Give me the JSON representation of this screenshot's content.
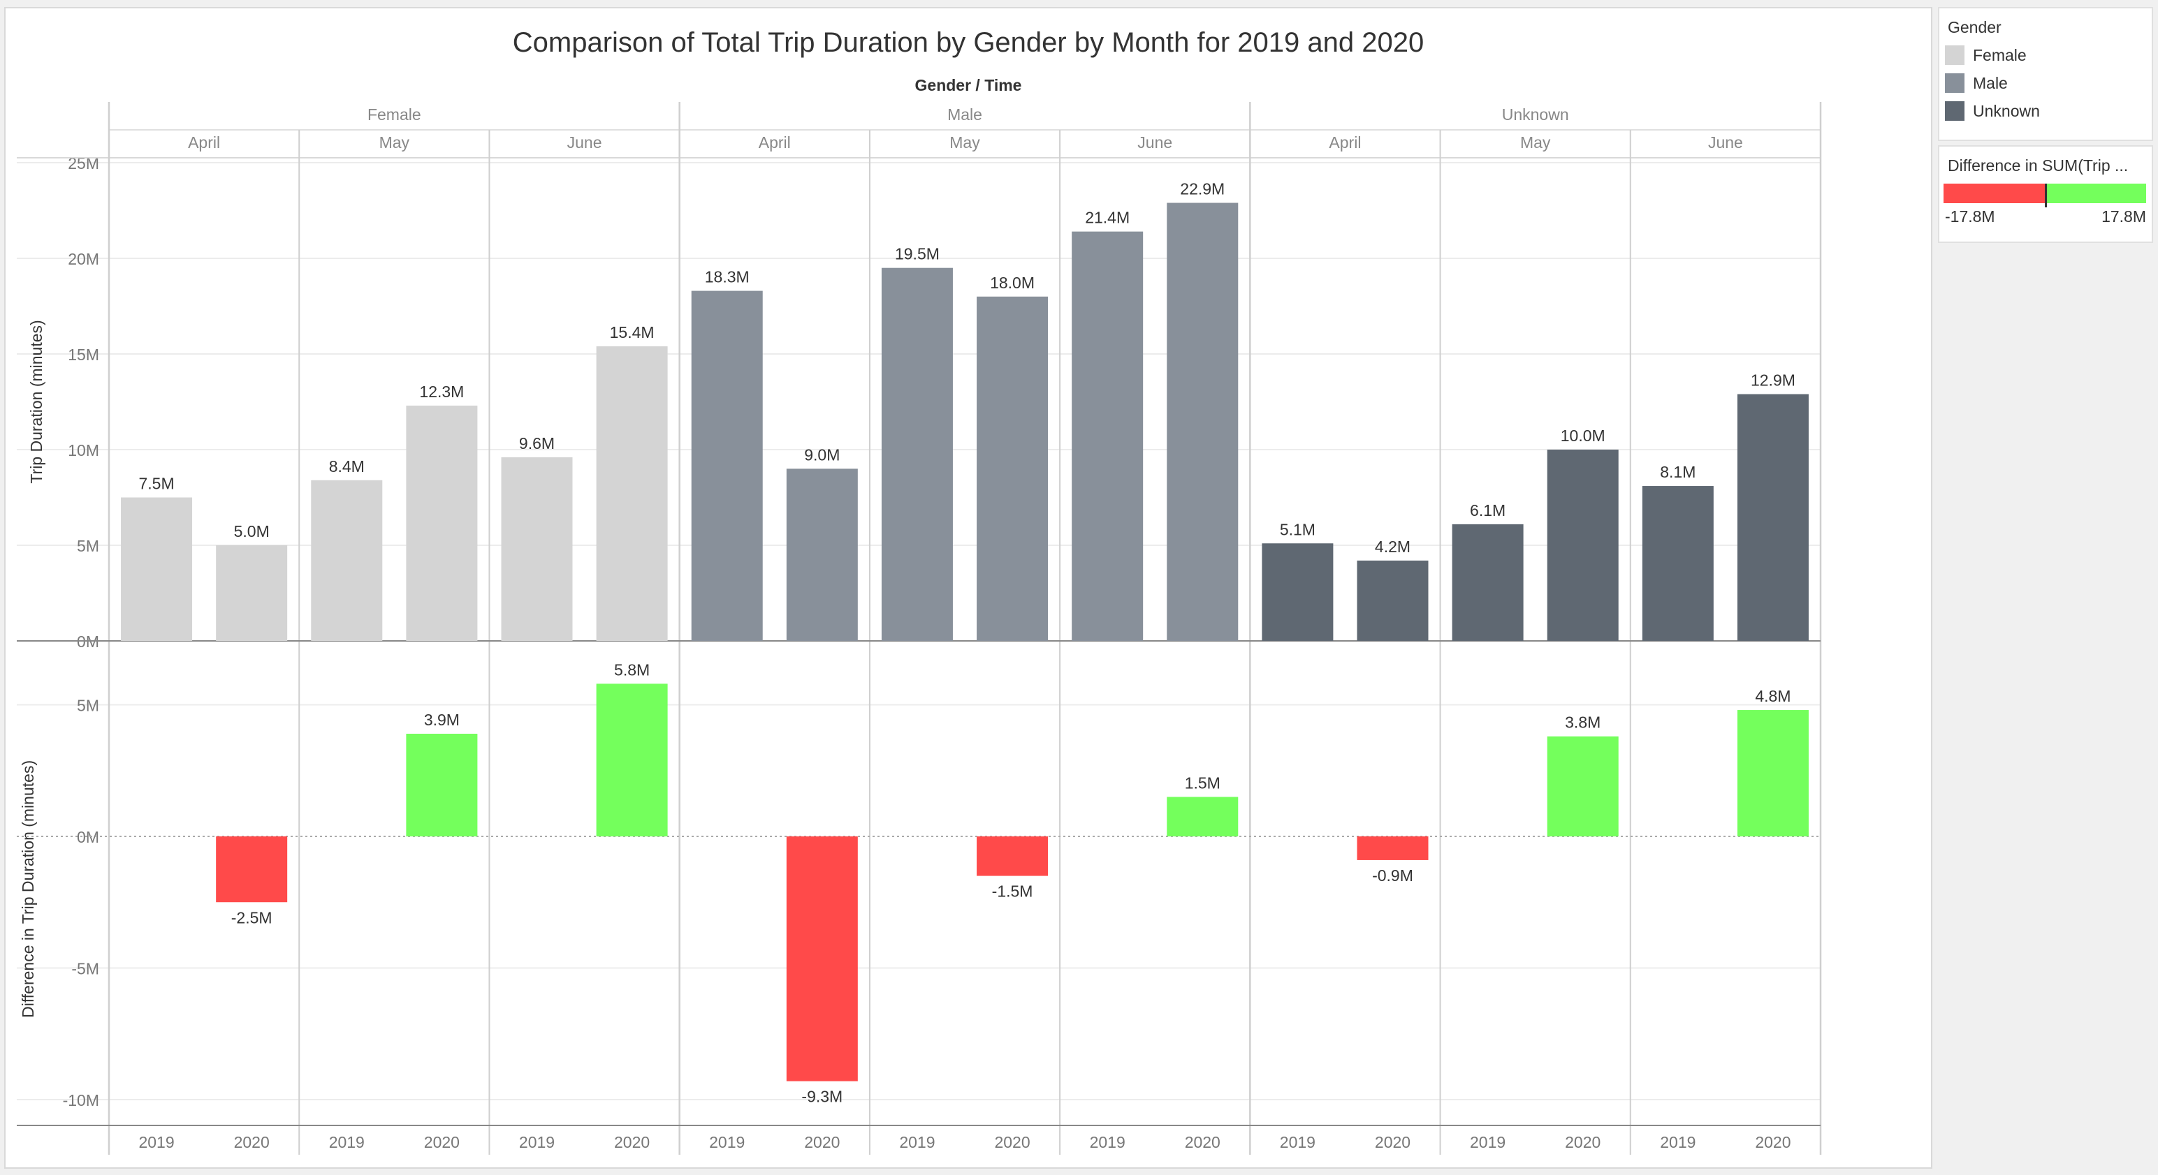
{
  "title": "Comparison of Total Trip Duration by Gender by Month for 2019 and 2020",
  "header_label": "Gender / Time",
  "legend": {
    "gender_title": "Gender",
    "genders": [
      {
        "label": "Female",
        "color": "#d4d4d4"
      },
      {
        "label": "Male",
        "color": "#88909a"
      },
      {
        "label": "Unknown",
        "color": "#5f6872"
      }
    ],
    "diff_title": "Difference in SUM(Trip ...",
    "diff_min": "-17.8M",
    "diff_max": "17.8M",
    "diff_neg_color": "#ff4a4a",
    "diff_pos_color": "#74ff5c"
  },
  "chart_data": [
    {
      "type": "bar",
      "title": "Comparison of Total Trip Duration by Gender by Month for 2019 and 2020",
      "ylabel": "Trip Duration (minutes)",
      "ylim": [
        0,
        25
      ],
      "yticks": [
        "0M",
        "5M",
        "10M",
        "15M",
        "20M",
        "25M"
      ],
      "unit": "M",
      "groups": [
        {
          "gender": "Female",
          "color": "#d4d4d4",
          "months": [
            {
              "month": "April",
              "values": [
                7.5,
                5.0
              ],
              "labels": [
                "7.5M",
                "5.0M"
              ]
            },
            {
              "month": "May",
              "values": [
                8.4,
                12.3
              ],
              "labels": [
                "8.4M",
                "12.3M"
              ]
            },
            {
              "month": "June",
              "values": [
                9.6,
                15.4
              ],
              "labels": [
                "9.6M",
                "15.4M"
              ]
            }
          ]
        },
        {
          "gender": "Male",
          "color": "#88909a",
          "months": [
            {
              "month": "April",
              "values": [
                18.3,
                9.0
              ],
              "labels": [
                "18.3M",
                "9.0M"
              ]
            },
            {
              "month": "May",
              "values": [
                19.5,
                18.0
              ],
              "labels": [
                "19.5M",
                "18.0M"
              ]
            },
            {
              "month": "June",
              "values": [
                21.4,
                22.9
              ],
              "labels": [
                "21.4M",
                "22.9M"
              ]
            }
          ]
        },
        {
          "gender": "Unknown",
          "color": "#5f6872",
          "months": [
            {
              "month": "April",
              "values": [
                5.1,
                4.2
              ],
              "labels": [
                "5.1M",
                "4.2M"
              ]
            },
            {
              "month": "May",
              "values": [
                6.1,
                10.0
              ],
              "labels": [
                "6.1M",
                "10.0M"
              ]
            },
            {
              "month": "June",
              "values": [
                8.1,
                12.9
              ],
              "labels": [
                "8.1M",
                "12.9M"
              ]
            }
          ]
        }
      ]
    },
    {
      "type": "bar",
      "ylabel": "Difference in Trip Duration (minutes)",
      "ylim": [
        -11,
        7.5
      ],
      "yticks": [
        "-10M",
        "-5M",
        "0M",
        "5M"
      ],
      "unit": "M",
      "years": [
        "2019",
        "2020"
      ],
      "differences": [
        {
          "gender": "Female",
          "month": "April",
          "value": -2.5,
          "label": "-2.5M"
        },
        {
          "gender": "Female",
          "month": "May",
          "value": 3.9,
          "label": "3.9M"
        },
        {
          "gender": "Female",
          "month": "June",
          "value": 5.8,
          "label": "5.8M"
        },
        {
          "gender": "Male",
          "month": "April",
          "value": -9.3,
          "label": "-9.3M"
        },
        {
          "gender": "Male",
          "month": "May",
          "value": -1.5,
          "label": "-1.5M"
        },
        {
          "gender": "Male",
          "month": "June",
          "value": 1.5,
          "label": "1.5M"
        },
        {
          "gender": "Unknown",
          "month": "April",
          "value": -0.9,
          "label": "-0.9M"
        },
        {
          "gender": "Unknown",
          "month": "May",
          "value": 3.8,
          "label": "3.8M"
        },
        {
          "gender": "Unknown",
          "month": "June",
          "value": 4.8,
          "label": "4.8M"
        }
      ]
    }
  ]
}
